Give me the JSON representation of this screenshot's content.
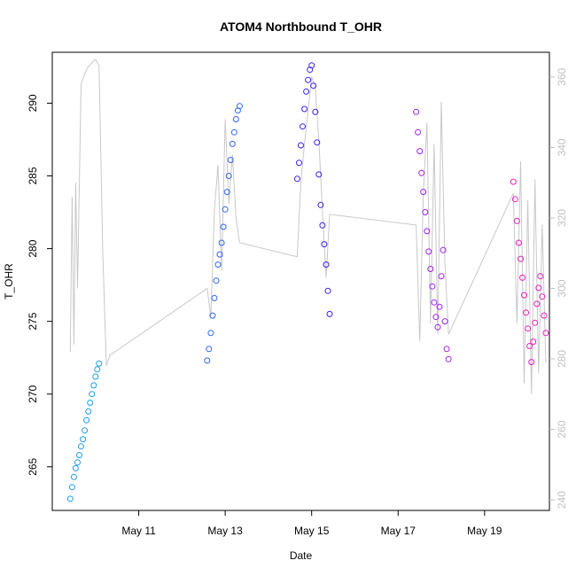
{
  "chart_data": {
    "type": "scatter",
    "title": "ATOM4 Northbound T_OHR",
    "xlabel": "Date",
    "ylabel": "T_OHR",
    "x_unit": "date",
    "xlim": [
      "2023-05-09 00:00",
      "2023-05-20 12:00"
    ],
    "ylim": [
      262,
      293.5
    ],
    "y_ticks": [
      265,
      270,
      275,
      280,
      285,
      290
    ],
    "x_ticks": [
      {
        "date": "2023-05-11",
        "label": "May 11"
      },
      {
        "date": "2023-05-13",
        "label": "May 13"
      },
      {
        "date": "2023-05-15",
        "label": "May 15"
      },
      {
        "date": "2023-05-17",
        "label": "May 17"
      },
      {
        "date": "2023-05-19",
        "label": "May 19"
      }
    ],
    "secondary_axis": {
      "side": "right",
      "color": "#bfbfbf",
      "ylim": [
        237,
        367
      ],
      "ticks": [
        240,
        260,
        280,
        300,
        320,
        340,
        360
      ]
    },
    "grid": false,
    "legend": "none",
    "marker": "open-circle",
    "series": [
      {
        "color": "#1E9BE8",
        "x": [
          "2023-05-09 10:00",
          "2023-05-09 11:00",
          "2023-05-09 12:00",
          "2023-05-09 13:00",
          "2023-05-09 14:00",
          "2023-05-09 15:00",
          "2023-05-09 16:00",
          "2023-05-09 17:00",
          "2023-05-09 18:00",
          "2023-05-09 19:00",
          "2023-05-09 20:00",
          "2023-05-09 21:00",
          "2023-05-09 22:00",
          "2023-05-09 23:00",
          "2023-05-10 00:00",
          "2023-05-10 01:00",
          "2023-05-10 02:00"
        ],
        "y": [
          262.8,
          263.6,
          264.3,
          264.9,
          265.3,
          265.8,
          266.4,
          266.9,
          267.5,
          268.2,
          268.8,
          269.4,
          270.0,
          270.6,
          271.2,
          271.7,
          272.1
        ]
      },
      {
        "color": "#2F66F0",
        "x": [
          "2023-05-12 14:00",
          "2023-05-12 15:00",
          "2023-05-12 16:00",
          "2023-05-12 17:00",
          "2023-05-12 18:00",
          "2023-05-12 19:00",
          "2023-05-12 20:00",
          "2023-05-12 21:00",
          "2023-05-12 22:00",
          "2023-05-12 23:00",
          "2023-05-13 00:00",
          "2023-05-13 01:00",
          "2023-05-13 02:00",
          "2023-05-13 03:00",
          "2023-05-13 04:00",
          "2023-05-13 05:00",
          "2023-05-13 06:00",
          "2023-05-13 07:00",
          "2023-05-13 08:00"
        ],
        "y": [
          272.3,
          273.1,
          274.2,
          275.4,
          276.6,
          277.8,
          278.9,
          279.6,
          280.4,
          281.5,
          282.7,
          283.9,
          285.0,
          286.1,
          287.2,
          288.0,
          288.9,
          289.5,
          289.8
        ]
      },
      {
        "color": "#3A1FE8",
        "x": [
          "2023-05-14 16:00",
          "2023-05-14 17:00",
          "2023-05-14 18:00",
          "2023-05-14 19:00",
          "2023-05-14 20:00",
          "2023-05-14 21:00",
          "2023-05-14 22:00",
          "2023-05-14 23:00",
          "2023-05-15 00:00",
          "2023-05-15 01:00",
          "2023-05-15 02:00",
          "2023-05-15 03:00",
          "2023-05-15 04:00",
          "2023-05-15 05:00",
          "2023-05-15 06:00",
          "2023-05-15 07:00",
          "2023-05-15 08:00",
          "2023-05-15 09:00",
          "2023-05-15 10:00"
        ],
        "y": [
          284.8,
          285.9,
          287.1,
          288.4,
          289.6,
          290.8,
          291.6,
          292.3,
          292.6,
          291.2,
          289.4,
          287.3,
          285.1,
          283.0,
          281.6,
          280.3,
          278.9,
          277.1,
          275.5
        ]
      },
      {
        "color": "#A020F0",
        "x": [
          "2023-05-17 10:00",
          "2023-05-17 11:00",
          "2023-05-17 12:00",
          "2023-05-17 13:00",
          "2023-05-17 14:00",
          "2023-05-17 15:00",
          "2023-05-17 16:00",
          "2023-05-17 17:00",
          "2023-05-17 18:00",
          "2023-05-17 19:00",
          "2023-05-17 20:00",
          "2023-05-17 21:00",
          "2023-05-17 22:00",
          "2023-05-17 23:00",
          "2023-05-18 00:00",
          "2023-05-18 01:00",
          "2023-05-18 02:00",
          "2023-05-18 03:00",
          "2023-05-18 04:00"
        ],
        "y": [
          289.4,
          288.0,
          286.7,
          285.2,
          283.9,
          282.5,
          281.2,
          279.8,
          278.6,
          277.4,
          276.3,
          275.3,
          274.6,
          276.0,
          278.1,
          279.9,
          275.0,
          273.1,
          272.4
        ]
      },
      {
        "color": "#E81FC0",
        "x": [
          "2023-05-19 16:00",
          "2023-05-19 17:00",
          "2023-05-19 18:00",
          "2023-05-19 19:00",
          "2023-05-19 20:00",
          "2023-05-19 21:00",
          "2023-05-19 22:00",
          "2023-05-19 23:00",
          "2023-05-20 00:00",
          "2023-05-20 01:00",
          "2023-05-20 02:00",
          "2023-05-20 03:00",
          "2023-05-20 04:00",
          "2023-05-20 05:00",
          "2023-05-20 06:00",
          "2023-05-20 07:00",
          "2023-05-20 08:00",
          "2023-05-20 09:00",
          "2023-05-20 10:00"
        ],
        "y": [
          284.6,
          283.4,
          281.9,
          280.4,
          279.3,
          278.0,
          276.8,
          275.6,
          274.5,
          273.3,
          272.2,
          273.6,
          274.9,
          276.2,
          277.3,
          278.1,
          276.7,
          275.4,
          274.2
        ]
      }
    ],
    "secondary_series": {
      "color": "#c8c8c8",
      "type": "line",
      "x": [
        "2023-05-09 10:00",
        "2023-05-09 11:00",
        "2023-05-09 12:00",
        "2023-05-09 13:00",
        "2023-05-09 14:00",
        "2023-05-09 16:00",
        "2023-05-09 18:00",
        "2023-05-09 20:00",
        "2023-05-09 22:00",
        "2023-05-10 00:00",
        "2023-05-10 02:00",
        "2023-05-10 04:00",
        "2023-05-10 06:00",
        "2023-05-10 08:00",
        "2023-05-12 14:00",
        "2023-05-12 16:00",
        "2023-05-12 18:00",
        "2023-05-12 20:00",
        "2023-05-12 22:00",
        "2023-05-13 00:00",
        "2023-05-13 02:00",
        "2023-05-13 04:00",
        "2023-05-13 06:00",
        "2023-05-13 08:00",
        "2023-05-14 16:00",
        "2023-05-14 18:00",
        "2023-05-14 20:00",
        "2023-05-14 22:00",
        "2023-05-15 00:00",
        "2023-05-15 02:00",
        "2023-05-15 04:00",
        "2023-05-15 06:00",
        "2023-05-15 08:00",
        "2023-05-15 10:00",
        "2023-05-17 10:00",
        "2023-05-17 12:00",
        "2023-05-17 14:00",
        "2023-05-17 16:00",
        "2023-05-17 18:00",
        "2023-05-17 20:00",
        "2023-05-17 22:00",
        "2023-05-18 00:00",
        "2023-05-18 02:00",
        "2023-05-18 04:00",
        "2023-05-19 16:00",
        "2023-05-19 18:00",
        "2023-05-19 20:00",
        "2023-05-19 22:00",
        "2023-05-20 00:00",
        "2023-05-20 02:00",
        "2023-05-20 04:00",
        "2023-05-20 06:00",
        "2023-05-20 08:00",
        "2023-05-20 10:00"
      ],
      "y": [
        282,
        326,
        284,
        330,
        300,
        358,
        361,
        363,
        364,
        365,
        363,
        311,
        278,
        281,
        300,
        292,
        322,
        335,
        305,
        348,
        324,
        338,
        320,
        313,
        309,
        330,
        341,
        350,
        360,
        357,
        342,
        322,
        303,
        321,
        318,
        285,
        327,
        347,
        290,
        341,
        287,
        353,
        307,
        287,
        327,
        290,
        336,
        273,
        325,
        270,
        331,
        276,
        318,
        279
      ]
    }
  }
}
